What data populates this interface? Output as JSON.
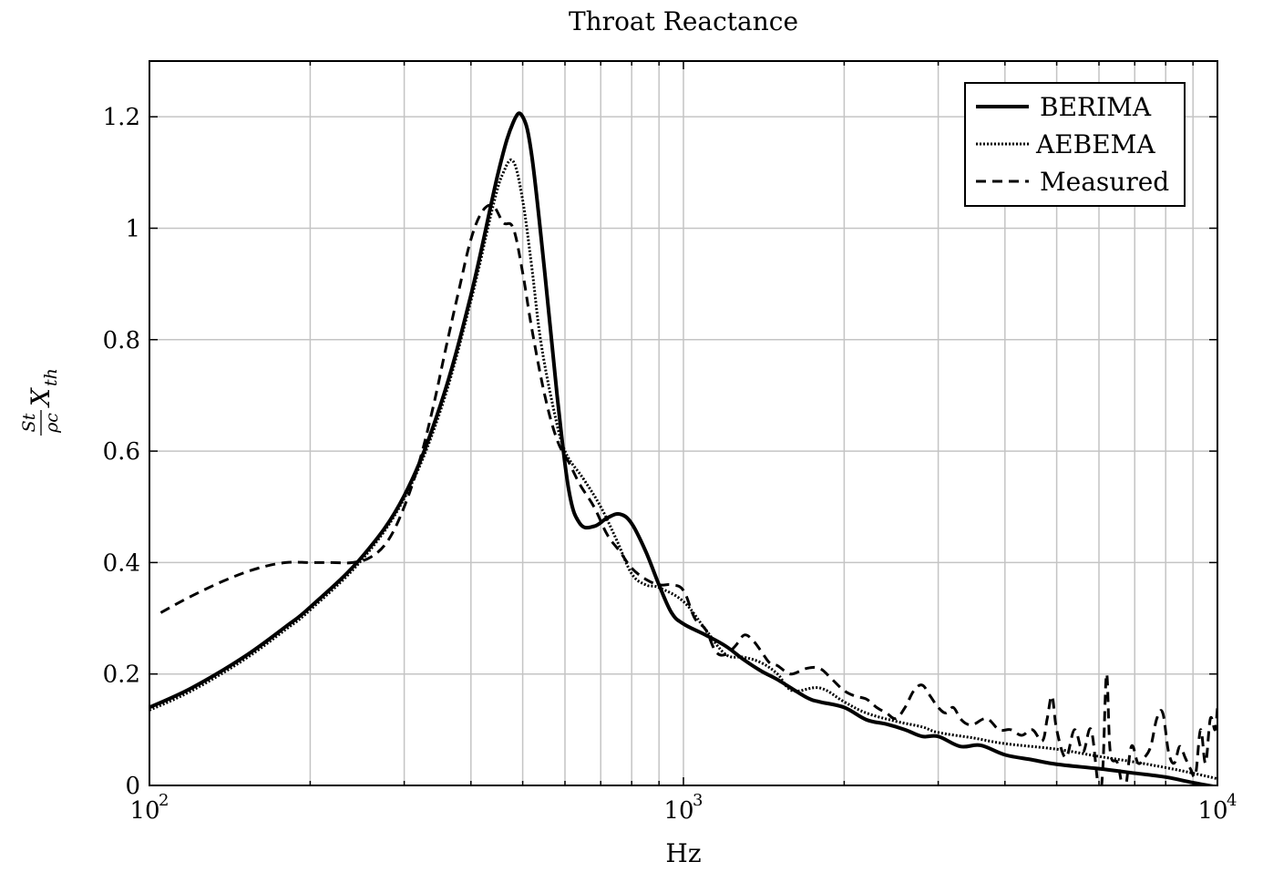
{
  "chart_data": {
    "type": "line",
    "title": "Throat Reactance",
    "xlabel": "Hz",
    "ylabel": "S_t/ρc X_th",
    "ylabel_parts": {
      "frac_num": "St",
      "frac_den": "ρc",
      "main": "X",
      "main_sub": "th"
    },
    "x_scale": "log",
    "xlim": [
      100,
      10000
    ],
    "ylim": [
      0,
      1.3
    ],
    "grid": true,
    "legend_position": "top-right",
    "x_ticks": [
      {
        "value": 100,
        "base": "10",
        "exp": "2"
      },
      {
        "value": 1000,
        "base": "10",
        "exp": "3"
      },
      {
        "value": 10000,
        "base": "10",
        "exp": "4"
      }
    ],
    "y_ticks": [
      {
        "value": 0,
        "label": "0"
      },
      {
        "value": 0.2,
        "label": "0.2"
      },
      {
        "value": 0.4,
        "label": "0.4"
      },
      {
        "value": 0.6,
        "label": "0.6"
      },
      {
        "value": 0.8,
        "label": "0.8"
      },
      {
        "value": 1.0,
        "label": "1"
      },
      {
        "value": 1.2,
        "label": "1.2"
      }
    ],
    "series": [
      {
        "name": "BERIMA",
        "style": "solid",
        "x": [
          100,
          120,
          150,
          180,
          200,
          250,
          300,
          350,
          400,
          450,
          480,
          500,
          520,
          550,
          580,
          610,
          640,
          680,
          720,
          760,
          800,
          850,
          900,
          950,
          1000,
          1100,
          1200,
          1300,
          1400,
          1500,
          1700,
          1800,
          2000,
          2200,
          2400,
          2600,
          2800,
          3000,
          3300,
          3600,
          4000,
          4500,
          5000,
          6000,
          7000,
          8000,
          9000,
          10000
        ],
        "y": [
          0.14,
          0.175,
          0.23,
          0.285,
          0.32,
          0.41,
          0.52,
          0.68,
          0.88,
          1.1,
          1.19,
          1.2,
          1.13,
          0.92,
          0.7,
          0.53,
          0.47,
          0.465,
          0.48,
          0.487,
          0.47,
          0.42,
          0.36,
          0.31,
          0.29,
          0.27,
          0.25,
          0.225,
          0.205,
          0.19,
          0.158,
          0.15,
          0.14,
          0.118,
          0.11,
          0.1,
          0.088,
          0.088,
          0.07,
          0.072,
          0.055,
          0.046,
          0.038,
          0.03,
          0.022,
          0.015,
          0.005,
          -0.003
        ]
      },
      {
        "name": "AEBEMA",
        "style": "dotted",
        "x": [
          100,
          120,
          150,
          180,
          200,
          250,
          300,
          350,
          400,
          440,
          460,
          480,
          500,
          520,
          540,
          570,
          600,
          650,
          700,
          750,
          800,
          850,
          900,
          1000,
          1100,
          1200,
          1300,
          1400,
          1500,
          1600,
          1800,
          2000,
          2200,
          2500,
          2800,
          3000,
          3500,
          4000,
          5000,
          6000,
          7000,
          8000,
          9000,
          10000
        ],
        "y": [
          0.135,
          0.17,
          0.225,
          0.28,
          0.315,
          0.405,
          0.515,
          0.67,
          0.87,
          1.04,
          1.1,
          1.12,
          1.05,
          0.93,
          0.8,
          0.68,
          0.6,
          0.55,
          0.5,
          0.44,
          0.38,
          0.36,
          0.355,
          0.33,
          0.28,
          0.235,
          0.23,
          0.22,
          0.2,
          0.17,
          0.175,
          0.15,
          0.13,
          0.115,
          0.105,
          0.095,
          0.085,
          0.075,
          0.065,
          0.052,
          0.042,
          0.032,
          0.022,
          0.012
        ]
      },
      {
        "name": "Measured",
        "style": "dashed",
        "x": [
          105,
          120,
          140,
          160,
          180,
          200,
          220,
          240,
          260,
          280,
          300,
          320,
          340,
          360,
          380,
          400,
          420,
          440,
          460,
          480,
          500,
          520,
          550,
          580,
          610,
          640,
          680,
          720,
          760,
          800,
          850,
          900,
          950,
          1000,
          1050,
          1100,
          1150,
          1200,
          1250,
          1300,
          1350,
          1400,
          1450,
          1500,
          1550,
          1600,
          1700,
          1800,
          1900,
          2000,
          2100,
          2200,
          2300,
          2400,
          2500,
          2600,
          2700,
          2800,
          2900,
          3000,
          3100,
          3200,
          3300,
          3400,
          3500,
          3700,
          3900,
          4100,
          4300,
          4500,
          4700,
          4800,
          4900,
          5000,
          5200,
          5400,
          5600,
          5800,
          6000,
          6100,
          6200,
          6300,
          6500,
          6700,
          6900,
          7100,
          7300,
          7500,
          7700,
          7900,
          8100,
          8300,
          8500,
          8700,
          8900,
          9100,
          9300,
          9500,
          9700,
          9900,
          10000
        ],
        "y": [
          0.31,
          0.34,
          0.37,
          0.39,
          0.4,
          0.4,
          0.4,
          0.4,
          0.41,
          0.44,
          0.5,
          0.58,
          0.68,
          0.79,
          0.89,
          0.98,
          1.03,
          1.04,
          1.01,
          1.0,
          0.92,
          0.82,
          0.7,
          0.62,
          0.58,
          0.54,
          0.5,
          0.45,
          0.42,
          0.39,
          0.37,
          0.36,
          0.36,
          0.35,
          0.3,
          0.28,
          0.24,
          0.235,
          0.25,
          0.27,
          0.26,
          0.24,
          0.22,
          0.215,
          0.205,
          0.2,
          0.21,
          0.21,
          0.19,
          0.17,
          0.16,
          0.155,
          0.14,
          0.13,
          0.12,
          0.14,
          0.17,
          0.18,
          0.16,
          0.14,
          0.13,
          0.14,
          0.12,
          0.11,
          0.11,
          0.12,
          0.1,
          0.1,
          0.09,
          0.1,
          0.08,
          0.12,
          0.16,
          0.1,
          0.05,
          0.1,
          0.06,
          0.1,
          -0.01,
          0.03,
          0.2,
          0.06,
          0.04,
          -0.01,
          0.07,
          0.04,
          0.05,
          0.07,
          0.12,
          0.13,
          0.06,
          0.04,
          0.07,
          0.05,
          0.03,
          0.02,
          0.1,
          0.04,
          0.12,
          0.1,
          0.14
        ]
      }
    ]
  }
}
